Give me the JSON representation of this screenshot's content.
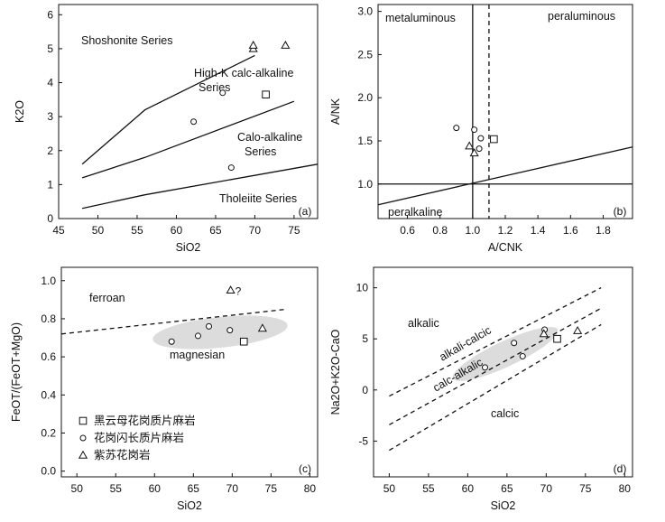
{
  "chart_data": [
    {
      "type": "scatter",
      "panel": "(a)",
      "xlabel": "SiO2",
      "ylabel": "K2O",
      "xlim": [
        45,
        78
      ],
      "ylim": [
        0,
        6.3
      ],
      "xticks": [
        45,
        50,
        55,
        60,
        65,
        70,
        75
      ],
      "yticks": [
        0,
        1,
        2,
        3,
        4,
        5,
        6
      ],
      "regions": [
        "Shoshonite Series",
        "High-K calc-alkaline",
        "Series",
        "Calo-alkaline",
        "Series",
        "Tholeiite Series"
      ],
      "boundaries": [
        [
          [
            48,
            1.6
          ],
          [
            56,
            3.2
          ],
          [
            70,
            4.8
          ]
        ],
        [
          [
            48,
            1.2
          ],
          [
            56,
            1.8
          ],
          [
            75,
            3.45
          ]
        ],
        [
          [
            48,
            0.3
          ],
          [
            56,
            0.7
          ],
          [
            78,
            1.6
          ]
        ]
      ],
      "series": [
        {
          "name": "黑云母花岗质片麻岩",
          "marker": "square",
          "points": [
            [
              71.4,
              3.65
            ]
          ]
        },
        {
          "name": "花岗闪长质片麻岩",
          "marker": "circle",
          "points": [
            [
              62.2,
              2.85
            ],
            [
              65.9,
              3.7
            ],
            [
              67.0,
              1.5
            ]
          ]
        },
        {
          "name": "紫苏花岗岩",
          "marker": "triangle",
          "points": [
            [
              69.8,
              5.0
            ],
            [
              69.8,
              5.1
            ],
            [
              73.9,
              5.1
            ]
          ]
        }
      ]
    },
    {
      "type": "scatter",
      "panel": "(b)",
      "xlabel": "A/CNK",
      "ylabel": "A/NK",
      "xlim": [
        0.42,
        1.98
      ],
      "ylim": [
        0.6,
        3.08
      ],
      "xticks": [
        0.6,
        0.8,
        1.0,
        1.2,
        1.4,
        1.6,
        1.8
      ],
      "yticks": [
        1.0,
        1.5,
        2.0,
        2.5,
        3.0
      ],
      "regions": [
        "metaluminous",
        "peraluminous",
        "peralkaline"
      ],
      "boundaries": {
        "vertical_solid": 1.0,
        "vertical_dashed": 1.1,
        "horizontal": 1.0,
        "diagonal": [
          [
            0.42,
            0.76
          ],
          [
            1.98,
            1.43
          ]
        ]
      },
      "series": [
        {
          "name": "黑云母花岗质片麻岩",
          "marker": "square",
          "points": [
            [
              1.13,
              1.52
            ]
          ]
        },
        {
          "name": "花岗闪长质片麻岩",
          "marker": "circle",
          "points": [
            [
              0.9,
              1.65
            ],
            [
              1.01,
              1.63
            ],
            [
              1.05,
              1.53
            ],
            [
              1.04,
              1.41
            ]
          ]
        },
        {
          "name": "紫苏花岗岩",
          "marker": "triangle",
          "points": [
            [
              0.98,
              1.44
            ],
            [
              1.01,
              1.36
            ]
          ]
        }
      ]
    },
    {
      "type": "scatter",
      "panel": "(c)",
      "xlabel": "SiO2",
      "ylabel": "FeOT/(FeOT+MgO)",
      "xlim": [
        48,
        81
      ],
      "ylim": [
        -0.03,
        1.07
      ],
      "xticks": [
        50,
        55,
        60,
        65,
        70,
        75,
        80
      ],
      "yticks": [
        0.0,
        0.2,
        0.4,
        0.6,
        0.8,
        1.0
      ],
      "regions": [
        "ferroan",
        "magnesian"
      ],
      "question_mark": "?",
      "boundary_dashed": [
        [
          48,
          0.72
        ],
        [
          77,
          0.85
        ]
      ],
      "series": [
        {
          "name": "黑云母花岗质片麻岩",
          "marker": "square",
          "points": [
            [
              71.5,
              0.68
            ]
          ]
        },
        {
          "name": "花岗闪长质片麻岩",
          "marker": "circle",
          "points": [
            [
              62.2,
              0.68
            ],
            [
              65.6,
              0.71
            ],
            [
              67.0,
              0.76
            ],
            [
              69.7,
              0.74
            ]
          ]
        },
        {
          "name": "紫苏花岗岩",
          "marker": "triangle",
          "points": [
            [
              69.8,
              0.95
            ],
            [
              73.9,
              0.75
            ]
          ]
        }
      ]
    },
    {
      "type": "scatter",
      "panel": "(d)",
      "xlabel": "SiO2",
      "ylabel": "Na2O+K2O-CaO",
      "xlim": [
        48,
        81
      ],
      "ylim": [
        -8.5,
        12
      ],
      "xticks": [
        50,
        55,
        60,
        65,
        70,
        75,
        80
      ],
      "yticks": [
        -5,
        0,
        5,
        10
      ],
      "regions": [
        "alkalic",
        "alkali-calcic",
        "calc-alkalic",
        "calcic"
      ],
      "boundaries_dashed": [
        [
          [
            50,
            -0.6
          ],
          [
            77,
            10.0
          ]
        ],
        [
          [
            50,
            -3.4
          ],
          [
            77,
            8.0
          ]
        ],
        [
          [
            50,
            -5.9
          ],
          [
            77,
            6.4
          ]
        ]
      ],
      "series": [
        {
          "name": "黑云母花岗质片麻岩",
          "marker": "square",
          "points": [
            [
              71.4,
              5.0
            ]
          ]
        },
        {
          "name": "花岗闪长质片麻岩",
          "marker": "circle",
          "points": [
            [
              62.2,
              2.2
            ],
            [
              65.9,
              4.6
            ],
            [
              67.0,
              3.3
            ],
            [
              69.8,
              5.9
            ]
          ]
        },
        {
          "name": "紫苏花岗岩",
          "marker": "triangle",
          "points": [
            [
              69.7,
              5.5
            ],
            [
              74.0,
              5.8
            ]
          ]
        }
      ]
    }
  ],
  "legend": {
    "items": [
      {
        "marker": "square",
        "label": "黑云母花岗质片麻岩"
      },
      {
        "marker": "circle",
        "label": "花岗闪长质片麻岩"
      },
      {
        "marker": "triangle",
        "label": "紫苏花岗岩"
      }
    ]
  },
  "colors": {
    "ink": "#111111",
    "field": "#dcdcdc"
  }
}
